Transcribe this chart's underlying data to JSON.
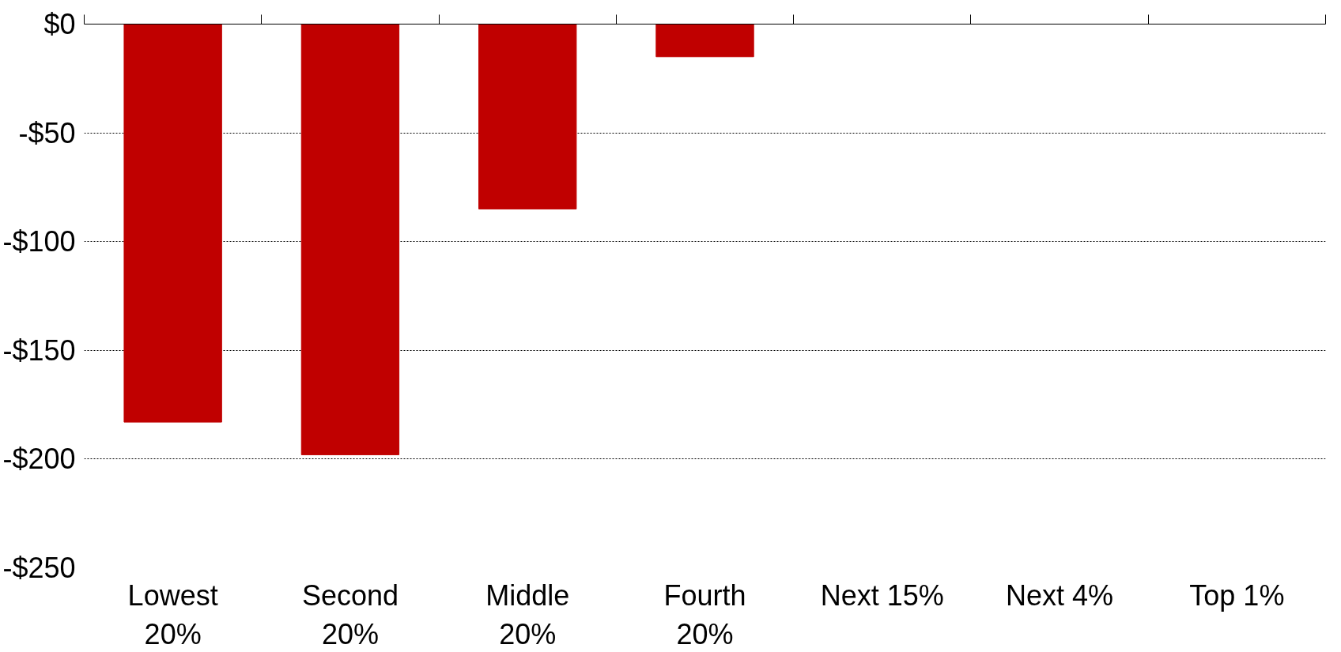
{
  "chart_data": {
    "type": "bar",
    "categories": [
      "Lowest\n20%",
      "Second\n20%",
      "Middle\n20%",
      "Fourth\n20%",
      "Next 15%",
      "Next 4%",
      "Top 1%"
    ],
    "values": [
      -183,
      -198,
      -85,
      -15,
      0,
      0,
      0
    ],
    "color": "#c00000",
    "ylim": [
      -250,
      0
    ],
    "yticks": [
      {
        "value": 0,
        "label": "$0"
      },
      {
        "value": -50,
        "label": "-$50"
      },
      {
        "value": -100,
        "label": "-$100"
      },
      {
        "value": -150,
        "label": "-$150"
      },
      {
        "value": -200,
        "label": "-$200"
      },
      {
        "value": -250,
        "label": "-$250"
      }
    ],
    "grid": "y"
  }
}
